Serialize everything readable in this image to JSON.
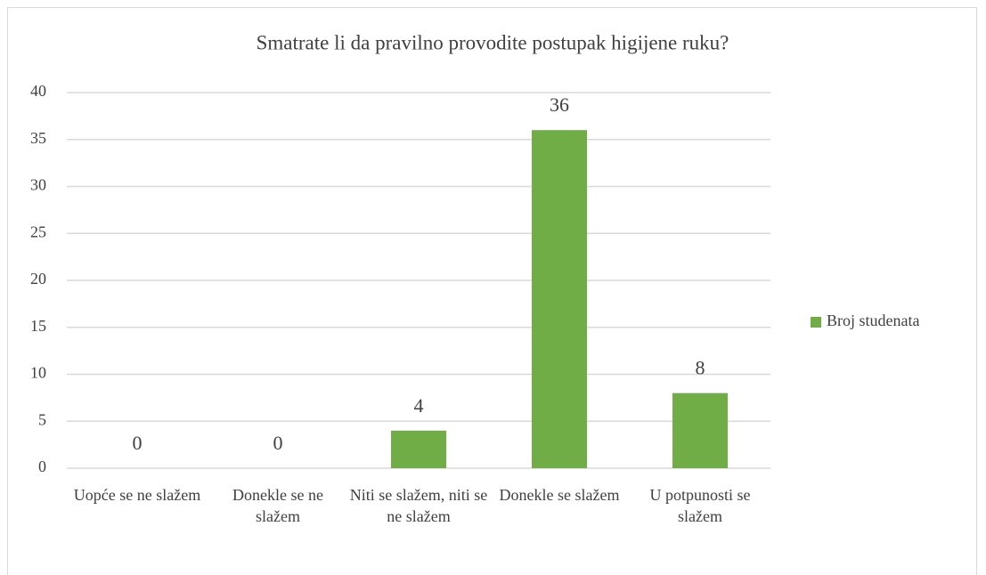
{
  "chart_data": {
    "type": "bar",
    "title": "Smatrate li da pravilno provodite postupak higijene ruku?",
    "categories": [
      "Uopće se ne slažem",
      "Donekle se ne slažem",
      "Niti se slažem, niti se ne slažem",
      "Donekle se slažem",
      "U potpunosti se slažem"
    ],
    "series": [
      {
        "name": "Broj studenata",
        "color": "#70ad47",
        "values": [
          0,
          0,
          4,
          36,
          8
        ]
      }
    ],
    "ylim": [
      0,
      40
    ],
    "yticks": [
      0,
      5,
      10,
      15,
      20,
      25,
      30,
      35,
      40
    ],
    "grid": true,
    "legend": "right"
  }
}
